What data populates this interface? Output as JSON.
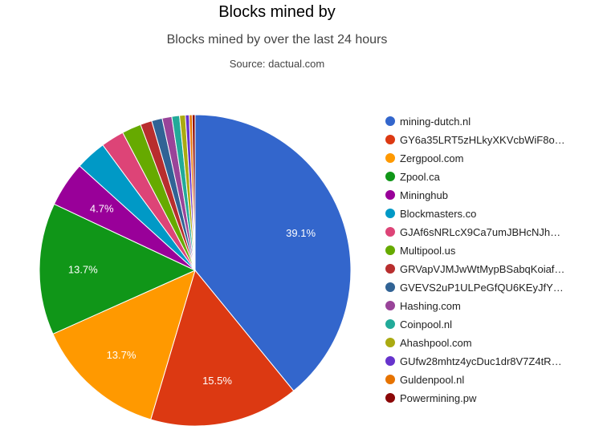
{
  "chart_data": {
    "type": "pie",
    "title": "Blocks mined by",
    "subtitle": "Blocks mined by over the last 24 hours",
    "source": "Source: dactual.com",
    "legend_position": "right",
    "slices": [
      {
        "name": "mining-dutch.nl",
        "value": 39.1,
        "label": "39.1%",
        "color": "#3366cc"
      },
      {
        "name": "GY6a35LRT5zHLkyXKVcbWiF8o…",
        "value": 15.5,
        "label": "15.5%",
        "color": "#dc3912"
      },
      {
        "name": "Zergpool.com",
        "value": 13.7,
        "label": "13.7%",
        "color": "#ff9900"
      },
      {
        "name": "Zpool.ca",
        "value": 13.7,
        "label": "13.7%",
        "color": "#109618"
      },
      {
        "name": "Mininghub",
        "value": 4.7,
        "label": "4.7%",
        "color": "#990099"
      },
      {
        "name": "Blockmasters.co",
        "value": 3.2,
        "label": "",
        "color": "#0099c6"
      },
      {
        "name": "GJAf6sNRLcX9Ca7umJBHcNJh…",
        "value": 2.4,
        "label": "",
        "color": "#dd4477"
      },
      {
        "name": "Multipool.us",
        "value": 2.0,
        "label": "",
        "color": "#66aa00"
      },
      {
        "name": "GRVapVJMJwWtMypBSabqKoiaf…",
        "value": 1.2,
        "label": "",
        "color": "#b82e2e"
      },
      {
        "name": "GVEVS2uP1ULPeGfQU6KEyJfY…",
        "value": 1.1,
        "label": "",
        "color": "#316395"
      },
      {
        "name": "Hashing.com",
        "value": 1.0,
        "label": "",
        "color": "#994499"
      },
      {
        "name": "Coinpool.nl",
        "value": 0.8,
        "label": "",
        "color": "#22aa99"
      },
      {
        "name": "Ahashpool.com",
        "value": 0.6,
        "label": "",
        "color": "#aaaa11"
      },
      {
        "name": "GUfw28mhtz4ycDuc1dr8V7Z4tR…",
        "value": 0.4,
        "label": "",
        "color": "#6633cc"
      },
      {
        "name": "Guldenpool.nl",
        "value": 0.3,
        "label": "",
        "color": "#e67300"
      },
      {
        "name": "Powermining.pw",
        "value": 0.3,
        "label": "",
        "color": "#8b0707"
      }
    ]
  }
}
